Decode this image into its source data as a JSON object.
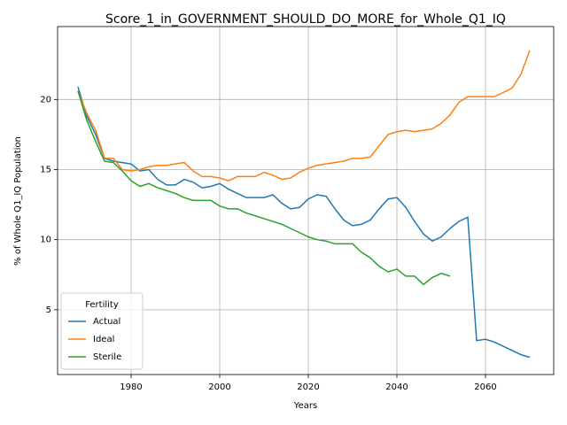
{
  "chart_data": {
    "type": "line",
    "title": "Score_1_in_GOVERNMENT_SHOULD_DO_MORE_for_Whole_Q1_IQ",
    "x_label": "Years",
    "y_label": "% of Whole Q1_IQ Population",
    "x": [
      1968,
      1970,
      1972,
      1974,
      1976,
      1978,
      1980,
      1982,
      1984,
      1986,
      1988,
      1990,
      1992,
      1994,
      1996,
      1998,
      2000,
      2002,
      2004,
      2006,
      2008,
      2010,
      2012,
      2014,
      2016,
      2018,
      2020,
      2022,
      2024,
      2026,
      2028,
      2030,
      2032,
      2034,
      2036,
      2038,
      2040,
      2042,
      2044,
      2046,
      2048,
      2050,
      2052,
      2054,
      2056,
      2058,
      2060,
      2062,
      2064,
      2066,
      2068,
      2070
    ],
    "series": [
      {
        "name": "Actual",
        "color": "#1f77b4",
        "values": [
          20.9,
          18.8,
          17.5,
          15.8,
          15.6,
          15.5,
          15.4,
          14.9,
          15.0,
          14.3,
          13.9,
          13.9,
          14.3,
          14.1,
          13.7,
          13.8,
          14.0,
          13.6,
          13.3,
          13.0,
          13.0,
          13.0,
          13.2,
          12.6,
          12.2,
          12.3,
          12.9,
          13.2,
          13.1,
          12.2,
          11.4,
          11.0,
          11.1,
          11.4,
          12.2,
          12.9,
          13.0,
          12.3,
          11.3,
          10.4,
          9.9,
          10.2,
          10.8,
          11.3,
          11.6,
          2.8,
          2.9,
          2.7,
          2.4,
          2.1,
          1.8,
          1.6
        ]
      },
      {
        "name": "Ideal",
        "color": "#ff7f0e",
        "values": [
          20.6,
          19.0,
          17.8,
          15.8,
          15.8,
          15.0,
          14.9,
          15.0,
          15.2,
          15.3,
          15.3,
          15.4,
          15.5,
          14.9,
          14.5,
          14.5,
          14.4,
          14.2,
          14.5,
          14.5,
          14.5,
          14.8,
          14.6,
          14.3,
          14.4,
          14.8,
          15.1,
          15.3,
          15.4,
          15.5,
          15.6,
          15.8,
          15.8,
          15.9,
          16.7,
          17.5,
          17.7,
          17.8,
          17.7,
          17.8,
          17.9,
          18.3,
          18.9,
          19.8,
          20.2,
          20.2,
          20.2,
          20.2,
          20.5,
          20.8,
          21.8,
          23.5
        ]
      },
      {
        "name": "Sterile",
        "color": "#2ca02c",
        "values": [
          20.6,
          18.5,
          17.0,
          15.6,
          15.5,
          14.9,
          14.2,
          13.8,
          14.0,
          13.7,
          13.5,
          13.3,
          13.0,
          12.8,
          12.8,
          12.8,
          12.4,
          12.2,
          12.2,
          11.9,
          11.7,
          11.5,
          11.3,
          11.1,
          10.8,
          10.5,
          10.2,
          10.0,
          9.9,
          9.7,
          9.7,
          9.7,
          9.1,
          8.7,
          8.1,
          7.7,
          7.9,
          7.4,
          7.4,
          6.8,
          7.3,
          7.6,
          7.4,
          null,
          null,
          null,
          null,
          null,
          null,
          null,
          null,
          null
        ]
      }
    ],
    "xlim": [
      1963.4,
      2075.4
    ],
    "xticks": [
      1980,
      2000,
      2020,
      2040,
      2060
    ],
    "ylim": [
      0.38,
      25.2
    ],
    "yticks": [
      5,
      10,
      15,
      20
    ],
    "grid": true,
    "legend_title": "Fertility",
    "legend_loc": "lower left"
  }
}
